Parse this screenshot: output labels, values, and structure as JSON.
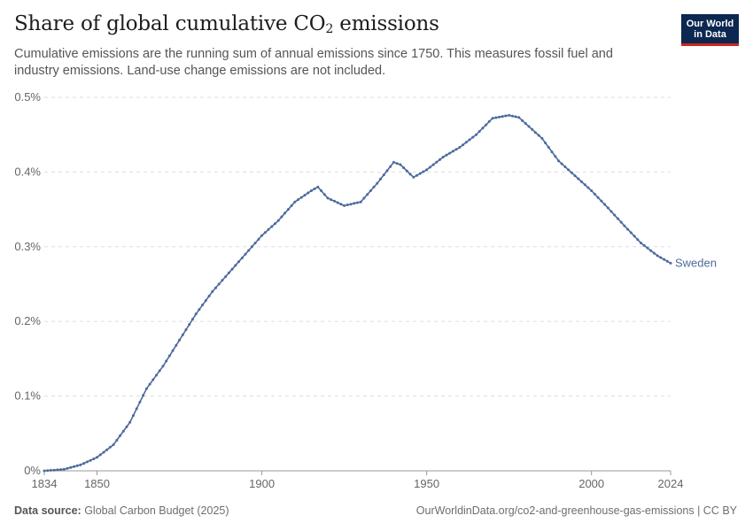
{
  "header": {
    "title_main": "Share of global cumulative CO",
    "title_sub": "2",
    "title_end": " emissions",
    "subtitle": "Cumulative emissions are the running sum of annual emissions since 1750. This measures fossil fuel and industry emissions. Land-use change emissions are not included."
  },
  "logo": {
    "line1": "Our World",
    "line2": "in Data"
  },
  "footer": {
    "source_label": "Data source:",
    "source_text": " Global Carbon Budget (2025)",
    "right_text": "OurWorldinData.org/co2-and-greenhouse-gas-emissions | CC BY"
  },
  "chart_data": {
    "type": "line",
    "title": "Share of global cumulative CO₂ emissions",
    "x_tick_labels": [
      "1834",
      "1850",
      "1900",
      "1950",
      "2000",
      "2024"
    ],
    "x_ticks": [
      1834,
      1850,
      1900,
      1950,
      2000,
      2024
    ],
    "y_tick_labels": [
      "0%",
      "0.1%",
      "0.2%",
      "0.3%",
      "0.4%",
      "0.5%"
    ],
    "y_ticks": [
      0,
      0.1,
      0.2,
      0.3,
      0.4,
      0.5
    ],
    "xlim": [
      1834,
      2024
    ],
    "ylim": [
      0,
      0.5
    ],
    "grid": "horizontal dashed",
    "series": [
      {
        "name": "Sweden",
        "color": "#4c6a9c",
        "points": [
          [
            1834,
            0.0
          ],
          [
            1840,
            0.002
          ],
          [
            1845,
            0.008
          ],
          [
            1850,
            0.018
          ],
          [
            1855,
            0.035
          ],
          [
            1860,
            0.065
          ],
          [
            1865,
            0.11
          ],
          [
            1870,
            0.14
          ],
          [
            1875,
            0.175
          ],
          [
            1880,
            0.21
          ],
          [
            1885,
            0.24
          ],
          [
            1890,
            0.265
          ],
          [
            1895,
            0.29
          ],
          [
            1900,
            0.315
          ],
          [
            1905,
            0.335
          ],
          [
            1910,
            0.36
          ],
          [
            1915,
            0.375
          ],
          [
            1917,
            0.38
          ],
          [
            1920,
            0.365
          ],
          [
            1925,
            0.355
          ],
          [
            1930,
            0.36
          ],
          [
            1935,
            0.385
          ],
          [
            1940,
            0.413
          ],
          [
            1942,
            0.41
          ],
          [
            1946,
            0.393
          ],
          [
            1950,
            0.403
          ],
          [
            1955,
            0.42
          ],
          [
            1960,
            0.433
          ],
          [
            1965,
            0.45
          ],
          [
            1970,
            0.472
          ],
          [
            1975,
            0.476
          ],
          [
            1978,
            0.473
          ],
          [
            1985,
            0.445
          ],
          [
            1990,
            0.415
          ],
          [
            1995,
            0.395
          ],
          [
            2000,
            0.375
          ],
          [
            2005,
            0.352
          ],
          [
            2010,
            0.328
          ],
          [
            2015,
            0.305
          ],
          [
            2020,
            0.288
          ],
          [
            2024,
            0.278
          ]
        ]
      }
    ]
  }
}
